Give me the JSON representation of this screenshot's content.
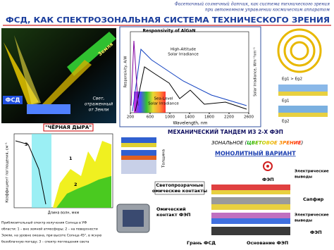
{
  "header": {
    "subtitle_lines": [
      "Фасеточный солнечный датчик, как система технического зрения",
      "при автономном управлении космическим аппаратом"
    ],
    "title": "ФСД, КАК СПЕКТРОЗОНАЛЬНАЯ СИСТЕМА ТЕХНИЧЕСКОГО ЗРЕНИЯ"
  },
  "earth_diagram": {
    "earth_label": "Земля",
    "sensor_label": "ФСД",
    "reflected_label": [
      "Свет,",
      "отраженный",
      "от Земли"
    ]
  },
  "spectrum_chart": {
    "title": "Responsivity of AlGaN",
    "high_label": [
      "High-Altitude",
      "Solar Irradiance"
    ],
    "sea_label": [
      "Sea-Level",
      "Solar Irradiance"
    ],
    "x_label": "Wavelength, nm",
    "y_label": "Responsivity, A/W",
    "y2_label": "Solar Irradiance, Wm⁻²nm⁻¹",
    "xticks": [
      200,
      600,
      1000,
      1400,
      1800,
      2200,
      2600
    ]
  },
  "band_diagram": {
    "labels": [
      "Eg1 > Eg2",
      "Eg1",
      "Eg2"
    ]
  },
  "absorption_chart": {
    "title": "\"ЧЁРНАЯ ДЫРА\"",
    "y_label": "Коэффициент поглощения, см⁻¹",
    "x_label": "Длина волн, мкм",
    "curve_labels": [
      "1",
      "2",
      "3"
    ],
    "caption": [
      "Приблизительный спектр излучения Солнца в УФ",
      "области: 1 – вне земной атмосферы; 2 – на поверхности",
      "Земли, на уровне океана, при высоте Солнца 45°, в ясную",
      "безоблачную погоду; 3 – спектр поглощения света"
    ]
  },
  "tandem": {
    "title": "МЕХАНИЧЕСКИЙ ТАНДЕМ ИЗ 2-Х ФЭП",
    "zonal_prefix": "ЗОНАЛЬНОЕ (",
    "zonal_color": "ЦВЕТОВОЕ ЗРЕНИЕ",
    "zonal_suffix": ")",
    "monolithic": "МОНОЛИТНЫЙ ВАРИАНТ",
    "thickness": "Толщина",
    "transparent_contacts": [
      "Светопрозрачные",
      "омические контакты"
    ],
    "ohmic_contact": [
      "Омический",
      "контакт ФЭП"
    ]
  },
  "assembly": {
    "fep_top": "ФЭП",
    "leads_top": [
      "Электрические",
      "выводы"
    ],
    "sapphire": "Сапфир",
    "leads_bottom": [
      "Электрические",
      "выводы"
    ],
    "fep_bottom": "ФЭП",
    "face": "Грань ФСД",
    "base": "Основание ФЭП"
  }
}
